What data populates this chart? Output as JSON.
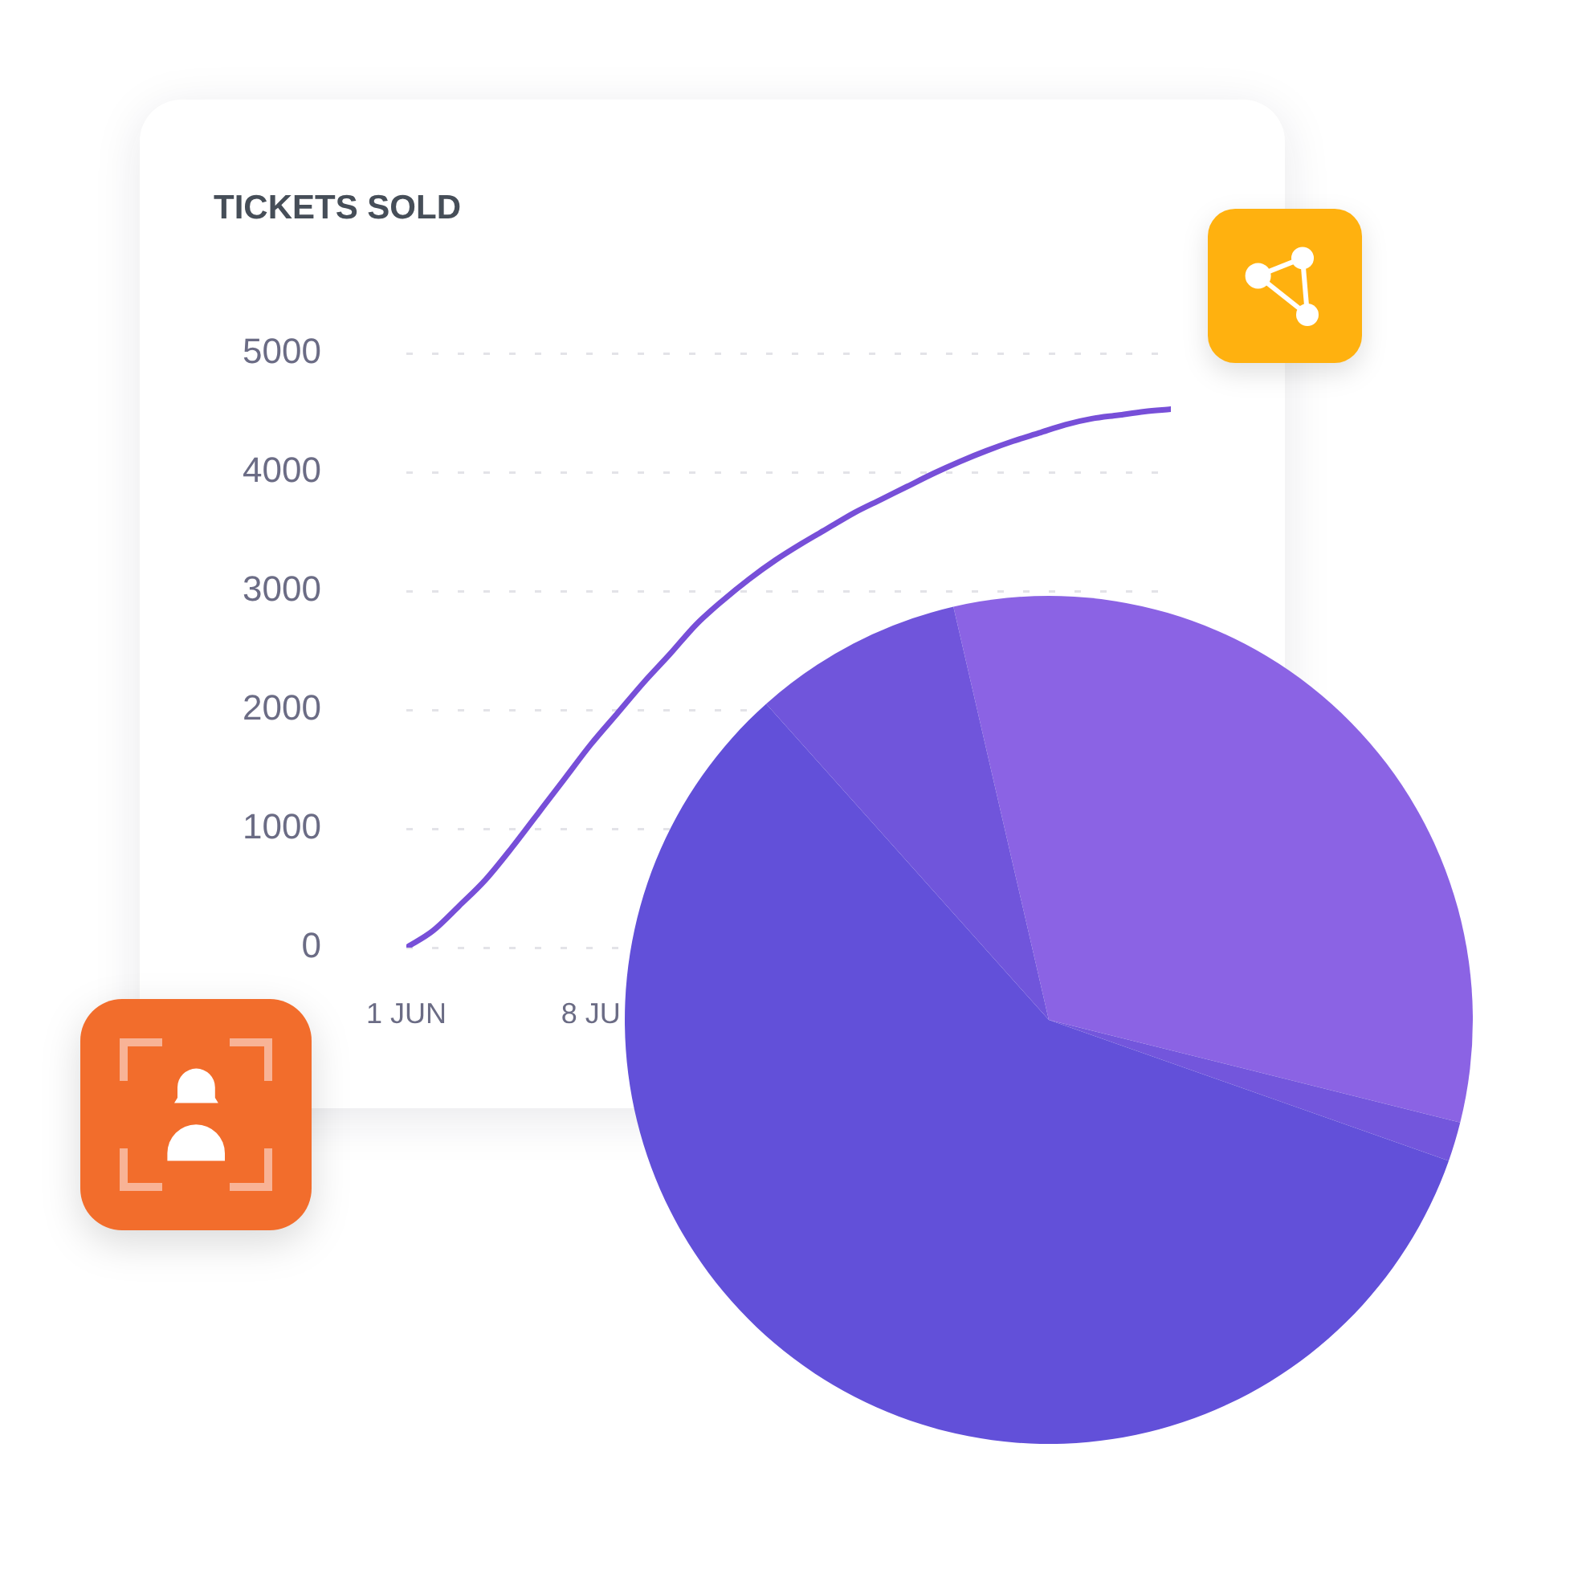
{
  "chart_data": [
    {
      "type": "line",
      "title": "TICKETS SOLD",
      "x": [
        "--06-01",
        "--06-02",
        "--06-03",
        "--06-04",
        "--06-05",
        "--06-06",
        "--06-07",
        "--06-08",
        "--06-09",
        "--06-10",
        "--06-11",
        "--06-12",
        "--06-13",
        "--06-14",
        "--06-15",
        "--06-16",
        "--06-17",
        "--06-18",
        "--06-19",
        "--06-20",
        "--06-21",
        "--06-22",
        "--06-23",
        "--06-24",
        "--06-25",
        "--06-26",
        "--06-27",
        "--06-28",
        "--06-29",
        "--06-30"
      ],
      "series": [
        {
          "color": "#774fd8",
          "values": [
            0,
            140,
            350,
            570,
            840,
            1130,
            1420,
            1710,
            1970,
            2230,
            2470,
            2720,
            2920,
            3100,
            3260,
            3400,
            3530,
            3660,
            3770,
            3880,
            3990,
            4090,
            4180,
            4260,
            4330,
            4400,
            4450,
            4480,
            4510,
            4530
          ]
        }
      ],
      "xlim": [
        "--06-01",
        "--06-30"
      ],
      "xticks": [
        {
          "value": "--06-01",
          "label": "1 JUN"
        },
        {
          "value": "--06-08",
          "label": "8 JU"
        }
      ],
      "ylim": [
        0,
        5000
      ],
      "yticks": [
        0,
        1000,
        2000,
        3000,
        4000,
        5000
      ],
      "grid": "y",
      "line_style": "solid"
    },
    {
      "type": "pie",
      "categories": [
        null,
        null,
        null,
        null
      ],
      "values": [
        32.5,
        1.5,
        58,
        8
      ],
      "colors": [
        "#8b63e4",
        "#7356dc",
        "#6250d9",
        "#7055db"
      ]
    }
  ]
}
